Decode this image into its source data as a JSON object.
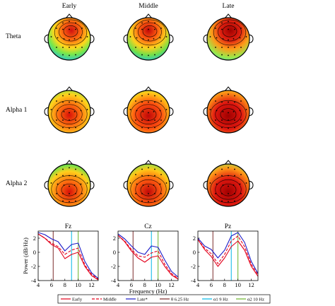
{
  "columns": [
    "Early",
    "Middle",
    "Late"
  ],
  "rows": [
    "Theta",
    "Alpha 1",
    "Alpha 2"
  ],
  "topomaps": [
    {
      "row": "Theta",
      "hotspots": [
        {
          "region": "frontal",
          "intensity": 0.75
        },
        {
          "region": "frontal",
          "intensity": 0.85
        },
        {
          "region": "frontal",
          "intensity": 1.0
        }
      ]
    },
    {
      "row": "Alpha 1",
      "hotspots": [
        {
          "region": "central-posterior",
          "intensity": 0.8
        },
        {
          "region": "central-posterior",
          "intensity": 0.9
        },
        {
          "region": "central-posterior",
          "intensity": 1.0
        }
      ]
    },
    {
      "row": "Alpha 2",
      "hotspots": [
        {
          "region": "posterior",
          "intensity": 0.8
        },
        {
          "region": "posterior",
          "intensity": 0.9
        },
        {
          "region": "posterior",
          "intensity": 1.0
        }
      ]
    }
  ],
  "chart_data": [
    {
      "type": "line",
      "title": "Fz",
      "ylabel": "Power (dB/Hz)",
      "xlabel": "",
      "xlim": [
        4,
        13
      ],
      "ylim": [
        -4,
        3
      ],
      "xticks": [
        4,
        6,
        8,
        10,
        12
      ],
      "yticks": [
        -4,
        -2,
        0,
        2
      ],
      "x": [
        4,
        5,
        6,
        7,
        8,
        9,
        10,
        11,
        12,
        13
      ],
      "series": [
        {
          "name": "Early",
          "values": [
            2.6,
            2.0,
            1.1,
            0.6,
            -0.9,
            -0.3,
            0.0,
            -2.0,
            -3.3,
            -3.9
          ]
        },
        {
          "name": "Middle",
          "values": [
            2.6,
            2.0,
            1.3,
            0.8,
            -0.3,
            0.3,
            0.6,
            -1.8,
            -3.1,
            -3.8
          ]
        },
        {
          "name": "Late*",
          "values": [
            2.8,
            2.5,
            1.9,
            1.5,
            0.2,
            1.1,
            1.3,
            -1.3,
            -2.9,
            -3.7
          ]
        }
      ],
      "vlines": [
        6.25,
        9,
        10
      ]
    },
    {
      "type": "line",
      "title": "Cz",
      "ylabel": "",
      "xlabel": "Frequency (Hz)",
      "xlim": [
        4,
        13
      ],
      "ylim": [
        -4,
        3
      ],
      "xticks": [
        4,
        6,
        8,
        10,
        12
      ],
      "yticks": [
        -4,
        -2,
        0,
        2
      ],
      "x": [
        4,
        5,
        6,
        7,
        8,
        9,
        10,
        11,
        12,
        13
      ],
      "series": [
        {
          "name": "Early",
          "values": [
            2.4,
            1.5,
            0.2,
            -0.8,
            -1.4,
            -0.7,
            -0.5,
            -2.0,
            -3.2,
            -3.8
          ]
        },
        {
          "name": "Middle",
          "values": [
            2.4,
            1.6,
            0.4,
            -0.5,
            -0.7,
            -0.1,
            0.2,
            -1.7,
            -3.0,
            -3.7
          ]
        },
        {
          "name": "Late*",
          "values": [
            2.6,
            1.9,
            0.9,
            0.0,
            -0.3,
            0.9,
            0.7,
            -1.1,
            -2.7,
            -3.5
          ]
        }
      ],
      "vlines": [
        6.25,
        9,
        10
      ]
    },
    {
      "type": "line",
      "title": "Pz",
      "ylabel": "",
      "xlabel": "",
      "xlim": [
        4,
        13
      ],
      "ylim": [
        -4,
        3
      ],
      "xticks": [
        4,
        6,
        8,
        10,
        12
      ],
      "yticks": [
        -4,
        -2,
        0,
        2
      ],
      "x": [
        4,
        5,
        6,
        7,
        8,
        9,
        10,
        11,
        12,
        13
      ],
      "series": [
        {
          "name": "Early",
          "values": [
            1.8,
            0.4,
            -0.6,
            -2.0,
            -0.8,
            0.8,
            1.6,
            0.3,
            -2.0,
            -3.4
          ]
        },
        {
          "name": "Middle",
          "values": [
            1.8,
            0.6,
            -0.2,
            -1.6,
            -0.3,
            1.6,
            2.3,
            0.8,
            -1.7,
            -3.2
          ]
        },
        {
          "name": "Late*",
          "values": [
            2.0,
            0.9,
            0.4,
            -0.8,
            0.3,
            2.3,
            2.8,
            1.4,
            -1.3,
            -3.0
          ]
        }
      ],
      "vlines": [
        6.25,
        9,
        10
      ]
    }
  ],
  "legend": [
    {
      "label": "Early",
      "color": "#e3001b",
      "dash": ""
    },
    {
      "label": "Middle",
      "color": "#e3001b",
      "dash": "4,2"
    },
    {
      "label": "Late*",
      "color": "#1b1bc8",
      "dash": ""
    },
    {
      "label": "θ 6.25 Hz",
      "color": "#7b2a2a",
      "dash": ""
    },
    {
      "label": "α1 9 Hz",
      "color": "#00b7e6",
      "dash": ""
    },
    {
      "label": "α2 10 Hz",
      "color": "#6ab42a",
      "dash": ""
    }
  ],
  "colors": {
    "early": "#e3001b",
    "middle": "#e3001b",
    "late": "#1b1bc8",
    "theta_line": "#7b2a2a",
    "alpha1_line": "#00b7e6",
    "alpha2_line": "#6ab42a"
  }
}
